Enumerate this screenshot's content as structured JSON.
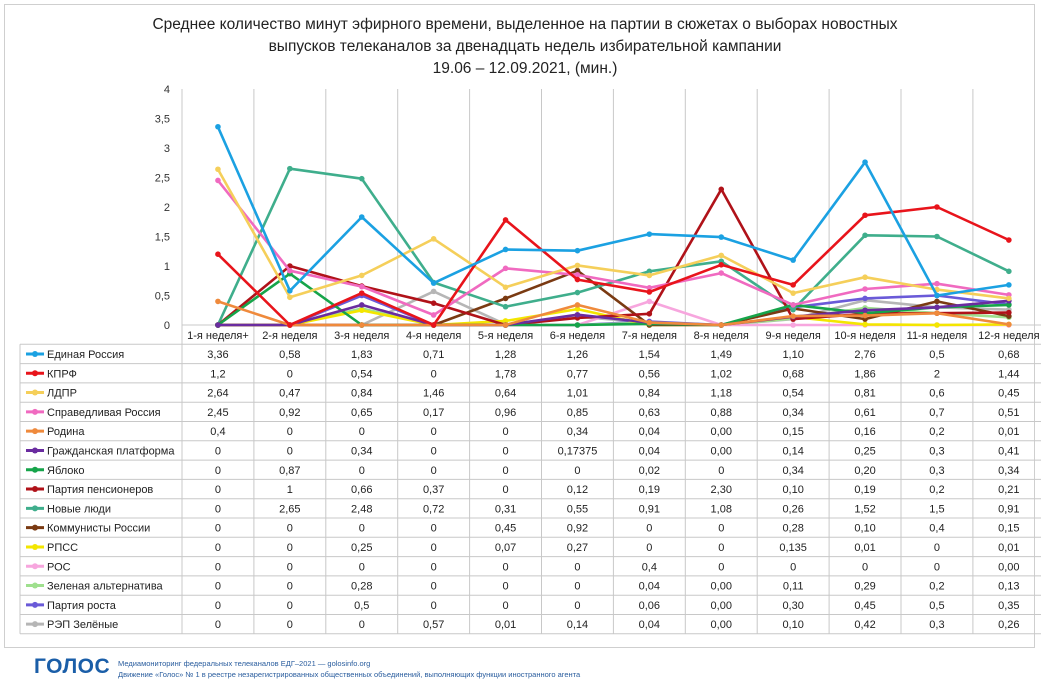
{
  "title_lines": [
    "Среднее количество минут эфирного времени, выделенное на партии в сюжетах о выборах новостных",
    "выпусков телеканалов за двенадцать недель избирательной кампании",
    "19.06 – 12.09.2021,  (мин.)"
  ],
  "footer": {
    "logo": "ГОЛОС",
    "line1": "Медиамониторинг федеральных телеканалов ЕДГ–2021 — golosinfo.org",
    "line2": "Движение «Голос» № 1 в реестре незарегистрированных общественных объединений, выполняющих функции иностранного агента"
  },
  "chart_data": {
    "type": "line",
    "ylim": [
      0,
      4
    ],
    "yticks": [
      "0",
      "0,5",
      "1",
      "1,5",
      "2",
      "2,5",
      "3",
      "3,5",
      "4"
    ],
    "grid": "vertical",
    "categories": [
      "1-я неделя+",
      "2-я неделя",
      "3-я неделя",
      "4-я неделя",
      "5-я неделя",
      "6-я неделя",
      "7-я неделя",
      "8-я неделя",
      "9-я неделя",
      "10-я неделя",
      "11-я неделя",
      "12-я неделя"
    ],
    "series": [
      {
        "name": "Единая Россия",
        "color": "#1ba1e2",
        "values": [
          3.36,
          0.58,
          1.83,
          0.71,
          1.28,
          1.26,
          1.54,
          1.49,
          1.1,
          2.76,
          0.5,
          0.68
        ],
        "labels": [
          "3,36",
          "0,58",
          "1,83",
          "0,71",
          "1,28",
          "1,26",
          "1,54",
          "1,49",
          "1,10",
          "2,76",
          "0,5",
          "0,68"
        ]
      },
      {
        "name": "КПРФ",
        "color": "#e8141b",
        "values": [
          1.2,
          0,
          0.54,
          0,
          1.78,
          0.77,
          0.56,
          1.02,
          0.68,
          1.86,
          2,
          1.44
        ],
        "labels": [
          "1,2",
          "0",
          "0,54",
          "0",
          "1,78",
          "0,77",
          "0,56",
          "1,02",
          "0,68",
          "1,86",
          "2",
          "1,44"
        ]
      },
      {
        "name": "ЛДПР",
        "color": "#f5cf5a",
        "values": [
          2.64,
          0.47,
          0.84,
          1.46,
          0.64,
          1.01,
          0.84,
          1.18,
          0.54,
          0.81,
          0.6,
          0.45
        ],
        "labels": [
          "2,64",
          "0,47",
          "0,84",
          "1,46",
          "0,64",
          "1,01",
          "0,84",
          "1,18",
          "0,54",
          "0,81",
          "0,6",
          "0,45"
        ]
      },
      {
        "name": "Справедливая Россия",
        "color": "#f06ac0",
        "values": [
          2.45,
          0.92,
          0.65,
          0.17,
          0.96,
          0.85,
          0.63,
          0.88,
          0.34,
          0.61,
          0.7,
          0.51
        ],
        "labels": [
          "2,45",
          "0,92",
          "0,65",
          "0,17",
          "0,96",
          "0,85",
          "0,63",
          "0,88",
          "0,34",
          "0,61",
          "0,7",
          "0,51"
        ]
      },
      {
        "name": "Родина",
        "color": "#ef8a3c",
        "values": [
          0.4,
          0,
          0,
          0,
          0,
          0.34,
          0.04,
          0,
          0.15,
          0.16,
          0.2,
          0.01
        ],
        "labels": [
          "0,4",
          "0",
          "0",
          "0",
          "0",
          "0,34",
          "0,04",
          "0,00",
          "0,15",
          "0,16",
          "0,2",
          "0,01"
        ]
      },
      {
        "name": "Гражданская платформа",
        "color": "#6a2ca0",
        "values": [
          0,
          0,
          0.34,
          0,
          0,
          0.17375,
          0.04,
          0,
          0.14,
          0.25,
          0.3,
          0.41
        ],
        "labels": [
          "0",
          "0",
          "0,34",
          "0",
          "0",
          "0,17375",
          "0,04",
          "0,00",
          "0,14",
          "0,25",
          "0,3",
          "0,41"
        ]
      },
      {
        "name": "Яблоко",
        "color": "#16a44a",
        "values": [
          0,
          0.87,
          0,
          0,
          0,
          0,
          0.02,
          0,
          0.34,
          0.2,
          0.3,
          0.34
        ],
        "labels": [
          "0",
          "0,87",
          "0",
          "0",
          "0",
          "0",
          "0,02",
          "0",
          "0,34",
          "0,20",
          "0,3",
          "0,34"
        ]
      },
      {
        "name": "Партия пенсионеров",
        "color": "#b01219",
        "values": [
          0,
          1,
          0.66,
          0.37,
          0,
          0.12,
          0.19,
          2.3,
          0.1,
          0.19,
          0.2,
          0.21
        ],
        "labels": [
          "0",
          "1",
          "0,66",
          "0,37",
          "0",
          "0,12",
          "0,19",
          "2,30",
          "0,10",
          "0,19",
          "0,2",
          "0,21"
        ]
      },
      {
        "name": "Новые люди",
        "color": "#3fae8c",
        "values": [
          0,
          2.65,
          2.48,
          0.72,
          0.31,
          0.55,
          0.91,
          1.08,
          0.26,
          1.52,
          1.5,
          0.91
        ],
        "labels": [
          "0",
          "2,65",
          "2,48",
          "0,72",
          "0,31",
          "0,55",
          "0,91",
          "1,08",
          "0,26",
          "1,52",
          "1,5",
          "0,91"
        ]
      },
      {
        "name": "Коммунисты России",
        "color": "#7a3a12",
        "values": [
          0,
          0,
          0,
          0,
          0.45,
          0.92,
          0,
          0,
          0.28,
          0.1,
          0.4,
          0.15
        ],
        "labels": [
          "0",
          "0",
          "0",
          "0",
          "0,45",
          "0,92",
          "0",
          "0",
          "0,28",
          "0,10",
          "0,4",
          "0,15"
        ]
      },
      {
        "name": "РПСС",
        "color": "#f3e600",
        "values": [
          0,
          0,
          0.25,
          0,
          0.07,
          0.27,
          0,
          0,
          0.135,
          0.01,
          0,
          0.01
        ],
        "labels": [
          "0",
          "0",
          "0,25",
          "0",
          "0,07",
          "0,27",
          "0",
          "0",
          "0,135",
          "0,01",
          "0",
          "0,01"
        ]
      },
      {
        "name": "РОС",
        "color": "#f7a6de",
        "values": [
          0,
          0,
          0,
          0,
          0,
          0,
          0.4,
          0,
          0,
          0,
          0,
          0
        ],
        "labels": [
          "0",
          "0",
          "0",
          "0",
          "0",
          "0",
          "0,4",
          "0",
          "0",
          "0",
          "0",
          "0,00"
        ]
      },
      {
        "name": "Зеленая альтернатива",
        "color": "#9fe08e",
        "values": [
          0,
          0,
          0.28,
          0,
          0,
          0,
          0.04,
          0,
          0.11,
          0.29,
          0.2,
          0.13
        ],
        "labels": [
          "0",
          "0",
          "0,28",
          "0",
          "0",
          "0",
          "0,04",
          "0,00",
          "0,11",
          "0,29",
          "0,2",
          "0,13"
        ]
      },
      {
        "name": "Партия роста",
        "color": "#6a5ad8",
        "values": [
          0,
          0,
          0.5,
          0,
          0,
          0,
          0.06,
          0,
          0.3,
          0.45,
          0.5,
          0.35
        ],
        "labels": [
          "0",
          "0",
          "0,5",
          "0",
          "0",
          "0",
          "0,06",
          "0,00",
          "0,30",
          "0,45",
          "0,5",
          "0,35"
        ]
      },
      {
        "name": "РЭП Зелёные",
        "color": "#b6b6b6",
        "values": [
          0,
          0,
          0,
          0.57,
          0.01,
          0.14,
          0.04,
          0,
          0.1,
          0.42,
          0.3,
          0.26
        ],
        "labels": [
          "0",
          "0",
          "0",
          "0,57",
          "0,01",
          "0,14",
          "0,04",
          "0,00",
          "0,10",
          "0,42",
          "0,3",
          "0,26"
        ]
      }
    ]
  }
}
